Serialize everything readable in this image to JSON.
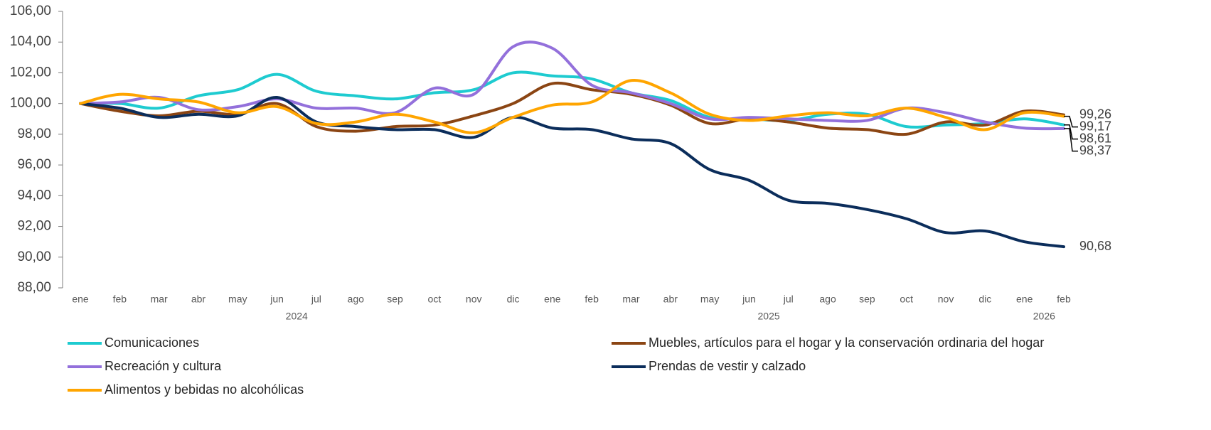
{
  "chart_data": {
    "type": "line",
    "categories": [
      "ene",
      "feb",
      "mar",
      "abr",
      "may",
      "jun",
      "jul",
      "ago",
      "sep",
      "oct",
      "nov",
      "dic",
      "ene",
      "feb",
      "mar",
      "abr",
      "may",
      "jun",
      "jul",
      "ago",
      "sep",
      "oct",
      "nov",
      "dic",
      "ene",
      "feb"
    ],
    "year_groups": [
      {
        "label": "2024",
        "start": 0,
        "end": 11
      },
      {
        "label": "2025",
        "start": 12,
        "end": 23
      },
      {
        "label": "2026",
        "start": 24,
        "end": 25
      }
    ],
    "ylim": [
      88,
      106
    ],
    "yticks": [
      {
        "value": 88,
        "label": "88,00"
      },
      {
        "value": 90,
        "label": "90,00"
      },
      {
        "value": 92,
        "label": "92,00"
      },
      {
        "value": 94,
        "label": "94,00"
      },
      {
        "value": 96,
        "label": "96,00"
      },
      {
        "value": 98,
        "label": "98,00"
      },
      {
        "value": 100,
        "label": "100,00"
      },
      {
        "value": 102,
        "label": "102,00"
      },
      {
        "value": 104,
        "label": "104,00"
      },
      {
        "value": 106,
        "label": "106,00"
      }
    ],
    "series": [
      {
        "name": "Comunicaciones",
        "color": "#1ecbd0",
        "values": [
          100,
          100.0,
          99.7,
          100.5,
          100.9,
          101.9,
          100.8,
          100.5,
          100.3,
          100.7,
          100.9,
          102.0,
          101.8,
          101.6,
          100.7,
          100.2,
          99.1,
          99.0,
          98.9,
          99.3,
          99.3,
          98.5,
          98.6,
          98.7,
          99.0,
          98.61
        ],
        "value_labels": {
          "25": "98,61"
        }
      },
      {
        "name": "Muebles, artículos para el hogar y la conservación ordinaria del hogar",
        "color": "#8b4513",
        "values": [
          100,
          99.5,
          99.2,
          99.5,
          99.3,
          100.0,
          98.5,
          98.2,
          98.5,
          98.6,
          99.2,
          100.0,
          101.3,
          100.9,
          100.6,
          99.9,
          98.7,
          99.0,
          98.8,
          98.4,
          98.3,
          98.0,
          98.8,
          98.6,
          99.5,
          99.26
        ],
        "value_labels": {
          "25": "99,26"
        }
      },
      {
        "name": "Recreación y cultura",
        "color": "#9370db",
        "values": [
          100,
          100.1,
          100.4,
          99.6,
          99.8,
          100.3,
          99.7,
          99.7,
          99.4,
          101.0,
          100.6,
          103.7,
          103.6,
          101.2,
          100.7,
          100.0,
          99.0,
          99.1,
          99.0,
          98.9,
          98.9,
          99.7,
          99.4,
          98.8,
          98.4,
          98.37
        ],
        "value_labels": {
          "25": "98,37"
        }
      },
      {
        "name": "Prendas de vestir y calzado",
        "color": "#0b2d5b",
        "values": [
          100,
          99.7,
          99.1,
          99.3,
          99.2,
          100.4,
          98.8,
          98.5,
          98.3,
          98.3,
          97.8,
          99.1,
          98.4,
          98.3,
          97.7,
          97.4,
          95.7,
          95.0,
          93.7,
          93.5,
          93.1,
          92.5,
          91.6,
          91.7,
          91.0,
          90.68
        ],
        "value_labels": {
          "25": "90,68"
        }
      },
      {
        "name": "Alimentos y bebidas no alcohólicas",
        "color": "#ffa500",
        "values": [
          100,
          100.6,
          100.3,
          100.1,
          99.4,
          99.8,
          98.7,
          98.8,
          99.3,
          98.8,
          98.1,
          99.1,
          99.9,
          100.1,
          101.5,
          100.7,
          99.3,
          98.9,
          99.2,
          99.4,
          99.2,
          99.7,
          99.1,
          98.3,
          99.4,
          99.17
        ],
        "value_labels": {
          "25": "99,17"
        }
      }
    ]
  }
}
